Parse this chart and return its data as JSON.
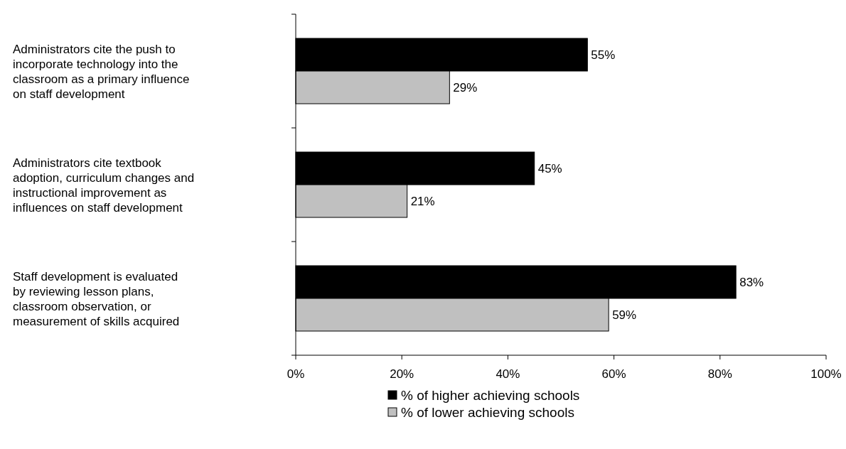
{
  "chart_data": {
    "type": "bar",
    "orientation": "horizontal",
    "categories": [
      "Administrators cite the push to incorporate technology into the classroom as a primary influence on staff development",
      "Administrators cite textbook adoption, curriculum changes and instructional improvement as influences on staff development",
      "Staff development is evaluated by reviewing lesson plans, classroom observation, or measurement of skills acquired"
    ],
    "series": [
      {
        "name": "% of higher achieving schools",
        "color": "#000000",
        "values": [
          55,
          45,
          83
        ],
        "value_labels": [
          "55%",
          "45%",
          "83%"
        ]
      },
      {
        "name": "% of lower achieving schools",
        "color": "#c0c0c0",
        "values": [
          29,
          21,
          59
        ],
        "value_labels": [
          "29%",
          "21%",
          "59%"
        ]
      }
    ],
    "xlim": [
      0,
      100
    ],
    "xticks": [
      {
        "value": 0,
        "label": "0%"
      },
      {
        "value": 20,
        "label": "20%"
      },
      {
        "value": 40,
        "label": "40%"
      },
      {
        "value": 60,
        "label": "60%"
      },
      {
        "value": 80,
        "label": "80%"
      },
      {
        "value": 100,
        "label": "100%"
      }
    ],
    "grid": false,
    "legend": "bottom"
  }
}
